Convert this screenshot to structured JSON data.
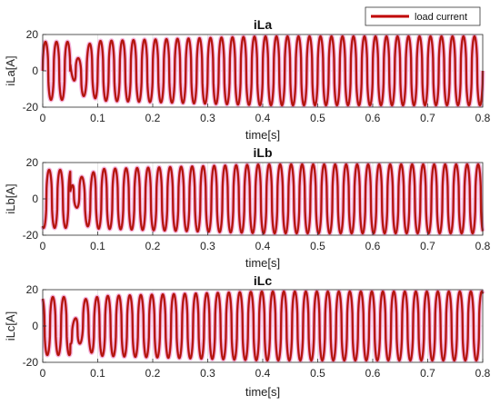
{
  "legend": {
    "label": "load current",
    "color": "#c00000",
    "position": "top-right"
  },
  "chart_data": [
    {
      "type": "line",
      "title": "iLa",
      "xlabel": "time[s]",
      "ylabel": "iLa[A]",
      "xlim": [
        0,
        0.8
      ],
      "ylim": [
        -20,
        20
      ],
      "xticks": [
        "0",
        "0.1",
        "0.2",
        "0.3",
        "0.4",
        "0.5",
        "0.6",
        "0.7",
        "0.8"
      ],
      "yticks": [
        "-20",
        "0",
        "20"
      ],
      "grid": true,
      "waveform": {
        "frequency_hz": 50,
        "steady_amplitude": 19,
        "initial_amplitude": 16,
        "phase_deg": 0,
        "disturbance_window": [
          0.05,
          0.1
        ]
      },
      "series": [
        {
          "name": "load current",
          "color": "#c00000"
        }
      ]
    },
    {
      "type": "line",
      "title": "iLb",
      "xlabel": "time[s]",
      "ylabel": "iLb[A]",
      "xlim": [
        0,
        0.8
      ],
      "ylim": [
        -20,
        20
      ],
      "xticks": [
        "0",
        "0.1",
        "0.2",
        "0.3",
        "0.4",
        "0.5",
        "0.6",
        "0.7",
        "0.8"
      ],
      "yticks": [
        "-20",
        "0",
        "20"
      ],
      "grid": true,
      "waveform": {
        "frequency_hz": 50,
        "steady_amplitude": 19,
        "initial_amplitude": 16,
        "phase_deg": -120,
        "disturbance_window": [
          0.05,
          0.1
        ]
      },
      "series": [
        {
          "name": "load current",
          "color": "#c00000"
        }
      ]
    },
    {
      "type": "line",
      "title": "iLc",
      "xlabel": "time[s]",
      "ylabel": "iLc[A]",
      "xlim": [
        0,
        0.8
      ],
      "ylim": [
        -20,
        20
      ],
      "xticks": [
        "0",
        "0.1",
        "0.2",
        "0.3",
        "0.4",
        "0.5",
        "0.6",
        "0.7",
        "0.8"
      ],
      "yticks": [
        "-20",
        "0",
        "20"
      ],
      "grid": true,
      "waveform": {
        "frequency_hz": 50,
        "steady_amplitude": 19,
        "initial_amplitude": 16,
        "phase_deg": 120,
        "disturbance_window": [
          0.05,
          0.1
        ]
      },
      "series": [
        {
          "name": "load current",
          "color": "#c00000"
        }
      ]
    }
  ]
}
